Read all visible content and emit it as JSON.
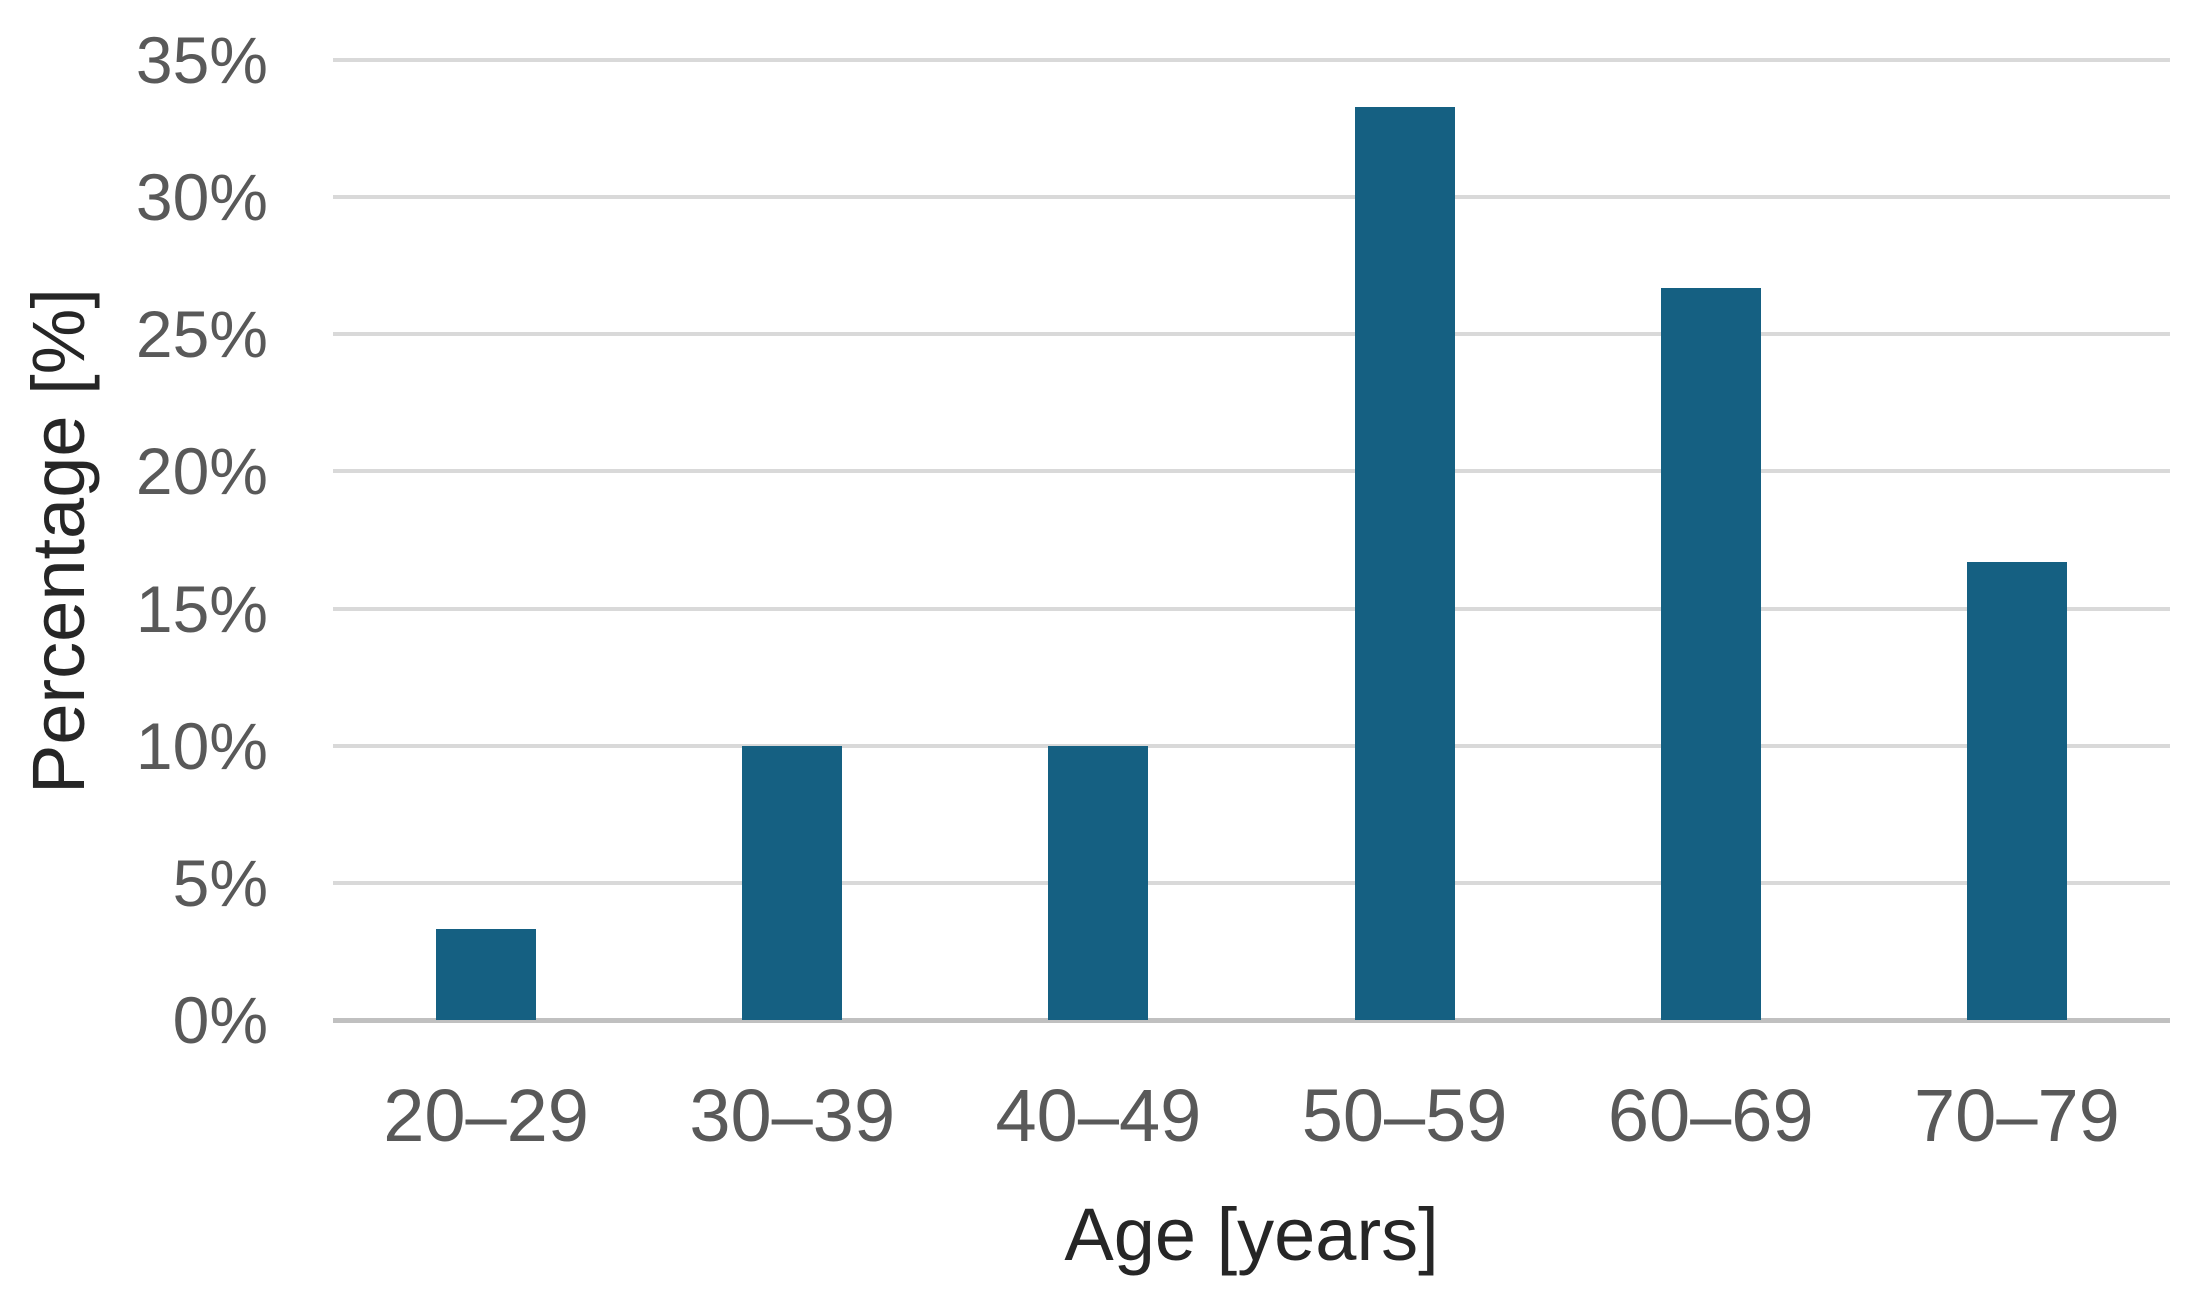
{
  "chart_data": {
    "type": "bar",
    "title": "",
    "xlabel": "Age [years]",
    "ylabel": "Percentage [%]",
    "categories": [
      "20–29",
      "30–39",
      "40–49",
      "50–59",
      "60–69",
      "70–79"
    ],
    "values": [
      3.3,
      10,
      10,
      33.3,
      26.7,
      16.7
    ],
    "value_unit": "%",
    "ylim": [
      0,
      35
    ],
    "y_tick_step": 5,
    "y_ticks": [
      {
        "value": 0,
        "label": "0%"
      },
      {
        "value": 5,
        "label": "5%"
      },
      {
        "value": 10,
        "label": "10%"
      },
      {
        "value": 15,
        "label": "15%"
      },
      {
        "value": 20,
        "label": "20%"
      },
      {
        "value": 25,
        "label": "25%"
      },
      {
        "value": 30,
        "label": "30%"
      },
      {
        "value": 35,
        "label": "35%"
      }
    ],
    "grid": "horizontal",
    "legend": "none",
    "colors": {
      "bar": "#156082",
      "gridline": "#d9d9d9",
      "axis_line": "#c0c0c0",
      "tick_text": "#595959",
      "title_text": "#262626",
      "background": "#ffffff"
    }
  }
}
